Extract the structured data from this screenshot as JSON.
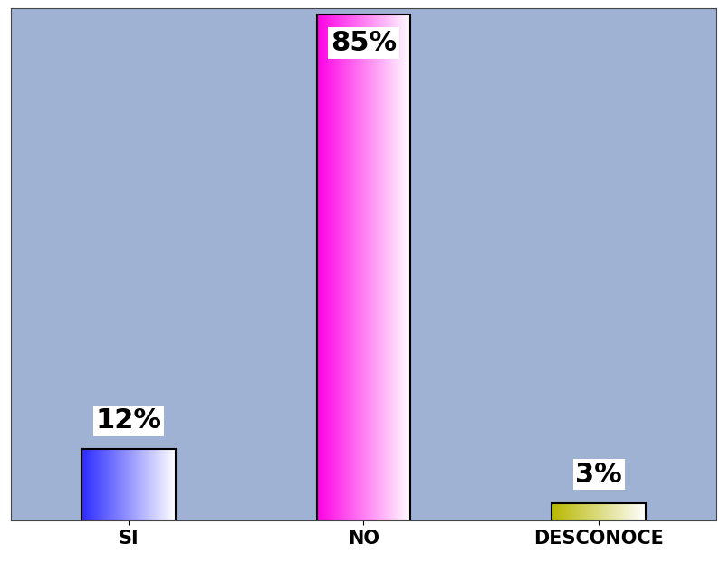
{
  "chart_data": {
    "type": "bar",
    "categories": [
      "SI",
      "NO",
      "DESCONOCE"
    ],
    "values": [
      12,
      85,
      3
    ],
    "value_labels": [
      "12%",
      "85%",
      "3%"
    ],
    "colors": [
      "#2b2bff",
      "#ff00e6",
      "#b8b800"
    ],
    "ylim": [
      0,
      86
    ],
    "data_labels": true,
    "tick_labels": "x",
    "grid": false
  }
}
